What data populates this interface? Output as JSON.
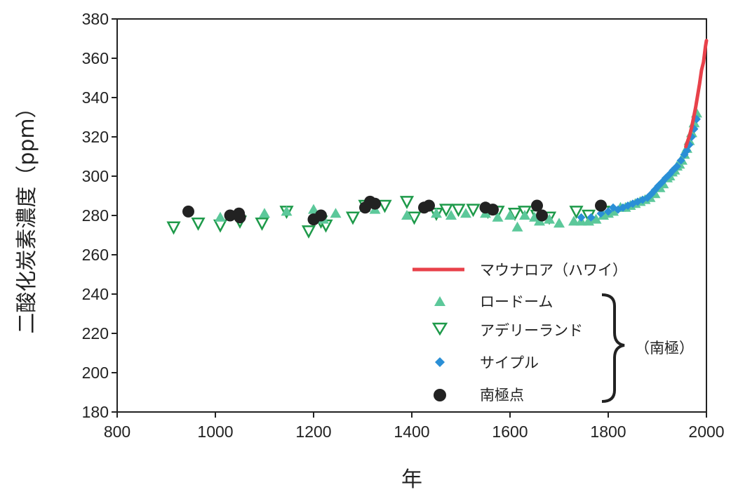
{
  "chart_data": {
    "type": "scatter",
    "xlabel": "年",
    "ylabel": "二酸化炭素濃度（ppm）",
    "xlim": [
      800,
      2000
    ],
    "ylim": [
      180,
      380
    ],
    "xticks": [
      800,
      1000,
      1200,
      1400,
      1600,
      1800,
      2000
    ],
    "yticks": [
      180,
      200,
      220,
      240,
      260,
      280,
      300,
      320,
      340,
      360,
      380
    ],
    "group_label": "（南極）",
    "colors": {
      "mauna_loa": "#e8414a",
      "law_dome": "#5cc89a",
      "adelie_land": "#1e9a4a",
      "siple": "#2a8fd6",
      "south_pole": "#222222"
    },
    "series": [
      {
        "name": "マウナロア（ハワイ）",
        "marker": "line",
        "points": [
          [
            1958,
            315
          ],
          [
            1962,
            318
          ],
          [
            1966,
            321
          ],
          [
            1970,
            325
          ],
          [
            1974,
            330
          ],
          [
            1978,
            335
          ],
          [
            1982,
            341
          ],
          [
            1986,
            347
          ],
          [
            1990,
            354
          ],
          [
            1994,
            358
          ],
          [
            1998,
            366
          ],
          [
            2000,
            369
          ]
        ]
      },
      {
        "name": "ロードーム",
        "marker": "triangle-up",
        "points": [
          [
            1010,
            279
          ],
          [
            1050,
            280
          ],
          [
            1100,
            281
          ],
          [
            1145,
            282
          ],
          [
            1200,
            283
          ],
          [
            1220,
            278
          ],
          [
            1245,
            281
          ],
          [
            1305,
            284
          ],
          [
            1325,
            283
          ],
          [
            1390,
            280
          ],
          [
            1450,
            281
          ],
          [
            1480,
            280
          ],
          [
            1510,
            281
          ],
          [
            1550,
            281
          ],
          [
            1575,
            279
          ],
          [
            1600,
            280
          ],
          [
            1615,
            274
          ],
          [
            1630,
            280
          ],
          [
            1650,
            279
          ],
          [
            1660,
            277
          ],
          [
            1680,
            278
          ],
          [
            1700,
            276
          ],
          [
            1730,
            277
          ],
          [
            1745,
            277
          ],
          [
            1760,
            277
          ],
          [
            1775,
            278
          ],
          [
            1790,
            280
          ],
          [
            1800,
            281
          ],
          [
            1810,
            282
          ],
          [
            1825,
            284
          ],
          [
            1835,
            284
          ],
          [
            1845,
            285
          ],
          [
            1855,
            286
          ],
          [
            1865,
            287
          ],
          [
            1875,
            288
          ],
          [
            1885,
            289
          ],
          [
            1895,
            291
          ],
          [
            1905,
            294
          ],
          [
            1912,
            296
          ],
          [
            1920,
            299
          ],
          [
            1925,
            300
          ],
          [
            1930,
            302
          ],
          [
            1935,
            303
          ],
          [
            1940,
            305
          ],
          [
            1945,
            306
          ],
          [
            1950,
            308
          ],
          [
            1955,
            311
          ],
          [
            1960,
            314
          ],
          [
            1965,
            318
          ],
          [
            1970,
            322
          ],
          [
            1975,
            327
          ],
          [
            1980,
            332
          ]
        ]
      },
      {
        "name": "アデリーランド",
        "marker": "triangle-down",
        "points": [
          [
            915,
            274
          ],
          [
            965,
            276
          ],
          [
            1010,
            275
          ],
          [
            1050,
            277
          ],
          [
            1095,
            276
          ],
          [
            1145,
            282
          ],
          [
            1190,
            272
          ],
          [
            1215,
            277
          ],
          [
            1225,
            275
          ],
          [
            1280,
            279
          ],
          [
            1305,
            285
          ],
          [
            1345,
            285
          ],
          [
            1390,
            287
          ],
          [
            1405,
            279
          ],
          [
            1450,
            281
          ],
          [
            1470,
            283
          ],
          [
            1495,
            283
          ],
          [
            1525,
            283
          ],
          [
            1555,
            282
          ],
          [
            1575,
            282
          ],
          [
            1610,
            281
          ],
          [
            1630,
            282
          ],
          [
            1655,
            280
          ],
          [
            1680,
            279
          ],
          [
            1735,
            282
          ],
          [
            1760,
            280
          ],
          [
            1790,
            282
          ]
        ]
      },
      {
        "name": "サイプル",
        "marker": "diamond",
        "points": [
          [
            1745,
            279
          ],
          [
            1765,
            279
          ],
          [
            1785,
            281
          ],
          [
            1800,
            282
          ],
          [
            1810,
            284
          ],
          [
            1820,
            283
          ],
          [
            1830,
            284
          ],
          [
            1840,
            285
          ],
          [
            1850,
            286
          ],
          [
            1860,
            287
          ],
          [
            1870,
            288
          ],
          [
            1880,
            289
          ],
          [
            1888,
            291
          ],
          [
            1895,
            293
          ],
          [
            1902,
            295
          ],
          [
            1910,
            297
          ],
          [
            1917,
            299
          ],
          [
            1925,
            301
          ],
          [
            1932,
            303
          ],
          [
            1940,
            305
          ],
          [
            1948,
            308
          ],
          [
            1955,
            311
          ],
          [
            1960,
            313
          ],
          [
            1965,
            316
          ],
          [
            1970,
            320
          ],
          [
            1975,
            324
          ],
          [
            1980,
            329
          ]
        ]
      },
      {
        "name": "南極点",
        "marker": "circle",
        "points": [
          [
            945,
            282
          ],
          [
            1030,
            280
          ],
          [
            1048,
            281
          ],
          [
            1050,
            279
          ],
          [
            1200,
            278
          ],
          [
            1215,
            280
          ],
          [
            1305,
            284
          ],
          [
            1315,
            287
          ],
          [
            1325,
            286
          ],
          [
            1425,
            284
          ],
          [
            1435,
            285
          ],
          [
            1550,
            284
          ],
          [
            1565,
            283
          ],
          [
            1655,
            285
          ],
          [
            1665,
            280
          ],
          [
            1785,
            285
          ]
        ]
      }
    ]
  }
}
